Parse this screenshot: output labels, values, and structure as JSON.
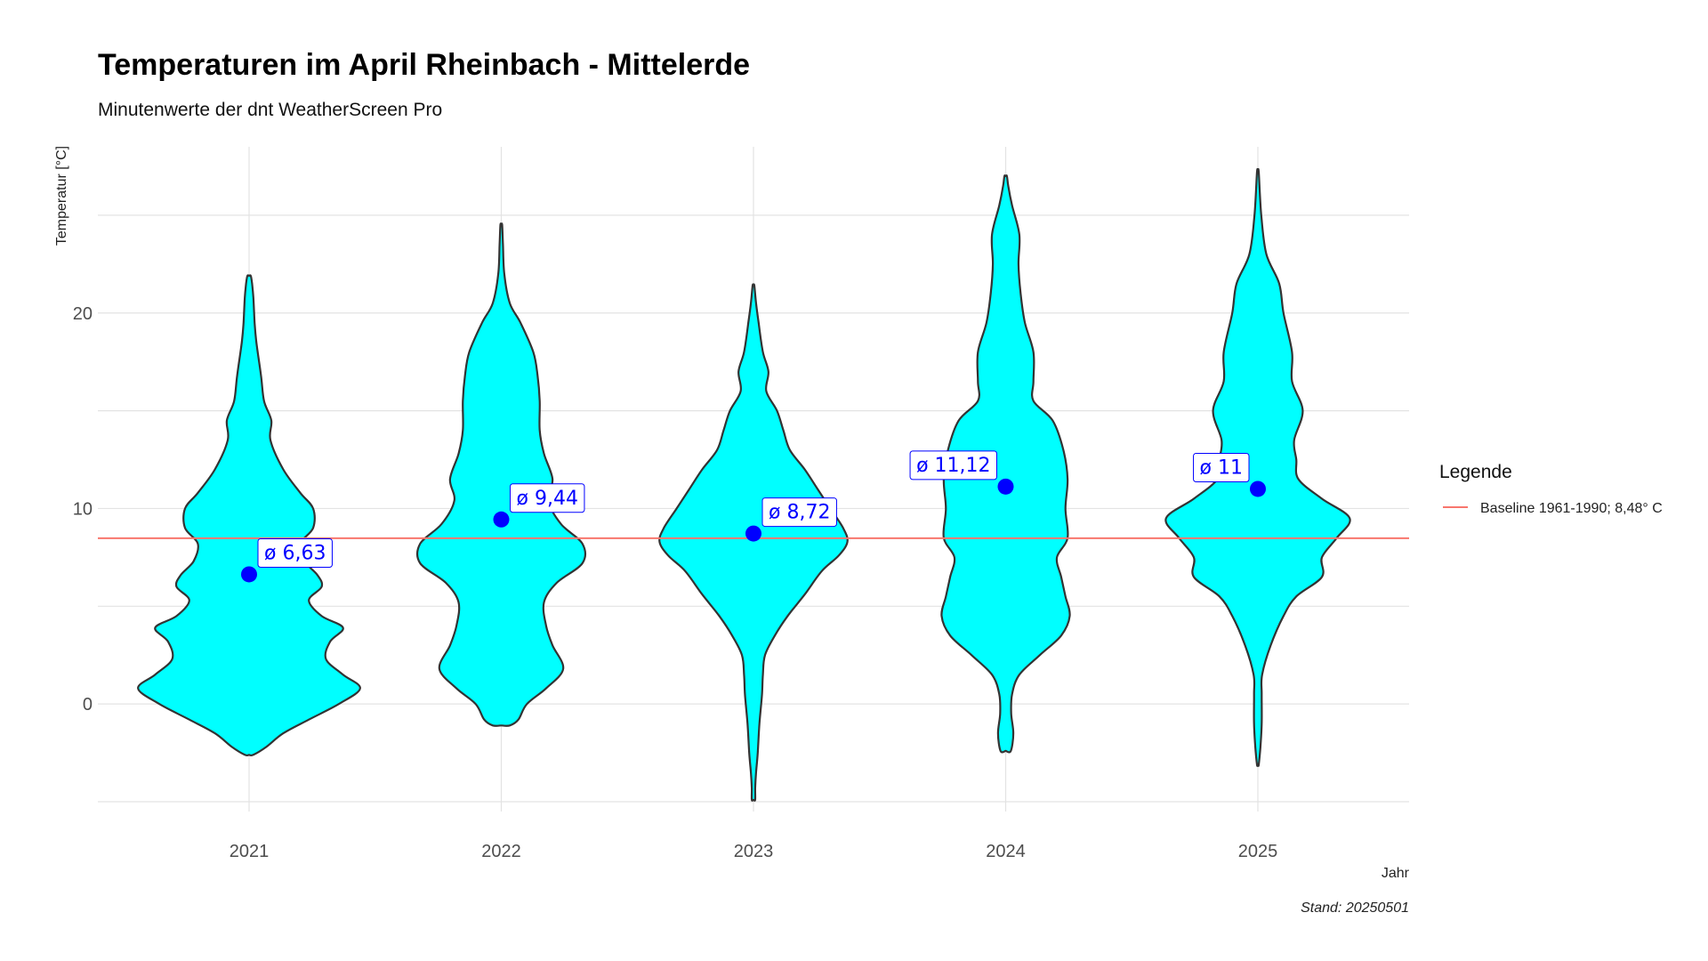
{
  "chart_data": {
    "type": "violin",
    "title": "Temperaturen im April Rheinbach - Mittelerde",
    "subtitle": "Minutenwerte der dnt WeatherScreen Pro",
    "xlabel": "Jahr",
    "ylabel": "Temperatur [°C]",
    "caption": "Stand: 20250501",
    "categories": [
      "2021",
      "2022",
      "2023",
      "2024",
      "2025"
    ],
    "y_ticks": [
      0,
      10,
      20
    ],
    "y_tick_labels": [
      "0",
      "10",
      "20"
    ],
    "ylim": [
      -5.5,
      28.5
    ],
    "grid": true,
    "fill_color": "#00FFFF",
    "outline_color": "#333333",
    "mean_point_color": "#0000FF",
    "baseline": {
      "label": "Baseline 1961-1990; 8,48° C",
      "value": 8.48,
      "color": "#F8766D"
    },
    "legend": {
      "title": "Legende",
      "position": "right"
    },
    "series": [
      {
        "year": "2021",
        "mean": 6.63,
        "mean_label": "ø 6,63",
        "label_side": "right",
        "violin": [
          [
            -2.6,
            0.1
          ],
          [
            -2.2,
            0.4
          ],
          [
            -1.5,
            0.8
          ],
          [
            -0.8,
            1.4
          ],
          [
            0,
            2.1
          ],
          [
            0.8,
            2.6
          ],
          [
            1.5,
            2.2
          ],
          [
            2.3,
            1.8
          ],
          [
            3.2,
            1.9
          ],
          [
            3.9,
            2.2
          ],
          [
            4.5,
            1.7
          ],
          [
            5.3,
            1.4
          ],
          [
            6,
            1.7
          ],
          [
            6.6,
            1.6
          ],
          [
            7.3,
            1.3
          ],
          [
            8.2,
            1.2
          ],
          [
            9.0,
            1.5
          ],
          [
            10.0,
            1.5
          ],
          [
            10.8,
            1.2
          ],
          [
            12.0,
            0.8
          ],
          [
            13.5,
            0.5
          ],
          [
            14.5,
            0.52
          ],
          [
            15.5,
            0.35
          ],
          [
            16.8,
            0.28
          ],
          [
            18.5,
            0.17
          ],
          [
            19.5,
            0.13
          ],
          [
            20.8,
            0.1
          ],
          [
            21.5,
            0.07
          ],
          [
            21.9,
            0.04
          ]
        ]
      },
      {
        "year": "2022",
        "mean": 9.44,
        "mean_label": "ø 9,44",
        "label_side": "right",
        "violin": [
          [
            -1.1,
            0.2
          ],
          [
            -0.8,
            0.4
          ],
          [
            0,
            0.6
          ],
          [
            0.8,
            1.05
          ],
          [
            1.8,
            1.45
          ],
          [
            3,
            1.2
          ],
          [
            4,
            1.05
          ],
          [
            5.2,
            1.0
          ],
          [
            6.2,
            1.3
          ],
          [
            7.2,
            1.9
          ],
          [
            8.2,
            1.9
          ],
          [
            9.2,
            1.4
          ],
          [
            10.4,
            1.1
          ],
          [
            11.5,
            1.2
          ],
          [
            12.8,
            1.0
          ],
          [
            14,
            0.9
          ],
          [
            15.5,
            0.9
          ],
          [
            16.8,
            0.85
          ],
          [
            18.0,
            0.75
          ],
          [
            19.5,
            0.45
          ],
          [
            20.5,
            0.2
          ],
          [
            22,
            0.07
          ],
          [
            23.5,
            0.04
          ],
          [
            24.5,
            0.02
          ]
        ]
      },
      {
        "year": "2023",
        "mean": 8.72,
        "mean_label": "ø 8,72",
        "label_side": "right",
        "violin": [
          [
            -4.9,
            0.04
          ],
          [
            -4.3,
            0.04
          ],
          [
            -3.5,
            0.06
          ],
          [
            -2.5,
            0.1
          ],
          [
            -1.0,
            0.14
          ],
          [
            0.5,
            0.2
          ],
          [
            1.5,
            0.22
          ],
          [
            2.5,
            0.27
          ],
          [
            3.5,
            0.5
          ],
          [
            4.5,
            0.8
          ],
          [
            5.6,
            1.2
          ],
          [
            6.8,
            1.6
          ],
          [
            7.6,
            2.0
          ],
          [
            8.3,
            2.2
          ],
          [
            9.0,
            2.1
          ],
          [
            10,
            1.8
          ],
          [
            11.0,
            1.5
          ],
          [
            12.0,
            1.2
          ],
          [
            13.0,
            0.85
          ],
          [
            14.0,
            0.7
          ],
          [
            15.0,
            0.55
          ],
          [
            16,
            0.3
          ],
          [
            17,
            0.35
          ],
          [
            18,
            0.22
          ],
          [
            19.5,
            0.12
          ],
          [
            20.5,
            0.06
          ],
          [
            21.4,
            0.02
          ]
        ]
      },
      {
        "year": "2024",
        "mean": 11.12,
        "mean_label": "ø 11,12",
        "label_side": "left",
        "violin": [
          [
            -2.4,
            0.12
          ],
          [
            -1.5,
            0.18
          ],
          [
            -0.5,
            0.13
          ],
          [
            0.5,
            0.15
          ],
          [
            1.5,
            0.32
          ],
          [
            2.5,
            0.8
          ],
          [
            3.5,
            1.3
          ],
          [
            4.5,
            1.5
          ],
          [
            5.5,
            1.4
          ],
          [
            6.5,
            1.3
          ],
          [
            7.5,
            1.2
          ],
          [
            8.5,
            1.45
          ],
          [
            10,
            1.4
          ],
          [
            11.5,
            1.45
          ],
          [
            13,
            1.35
          ],
          [
            14.5,
            1.1
          ],
          [
            15.5,
            0.65
          ],
          [
            16.5,
            0.65
          ],
          [
            18,
            0.65
          ],
          [
            19.5,
            0.45
          ],
          [
            21,
            0.35
          ],
          [
            22.5,
            0.3
          ],
          [
            24,
            0.32
          ],
          [
            25.5,
            0.15
          ],
          [
            26.5,
            0.06
          ],
          [
            27.0,
            0.03
          ]
        ]
      },
      {
        "year": "2025",
        "mean": 11.0,
        "mean_label": "ø 11",
        "label_side": "left",
        "violin": [
          [
            -3.1,
            0.02
          ],
          [
            -2.2,
            0.06
          ],
          [
            -1,
            0.09
          ],
          [
            0.5,
            0.09
          ],
          [
            1.5,
            0.1
          ],
          [
            3,
            0.3
          ],
          [
            4.5,
            0.6
          ],
          [
            5.5,
            0.9
          ],
          [
            6.5,
            1.5
          ],
          [
            7.5,
            1.5
          ],
          [
            8.5,
            1.85
          ],
          [
            9.5,
            2.15
          ],
          [
            10.5,
            1.5
          ],
          [
            11.5,
            0.95
          ],
          [
            12.5,
            0.9
          ],
          [
            13.5,
            0.85
          ],
          [
            15,
            1.05
          ],
          [
            16.5,
            0.8
          ],
          [
            18,
            0.8
          ],
          [
            20,
            0.6
          ],
          [
            21.5,
            0.5
          ],
          [
            23,
            0.2
          ],
          [
            25,
            0.08
          ],
          [
            27.2,
            0.02
          ]
        ]
      }
    ]
  }
}
